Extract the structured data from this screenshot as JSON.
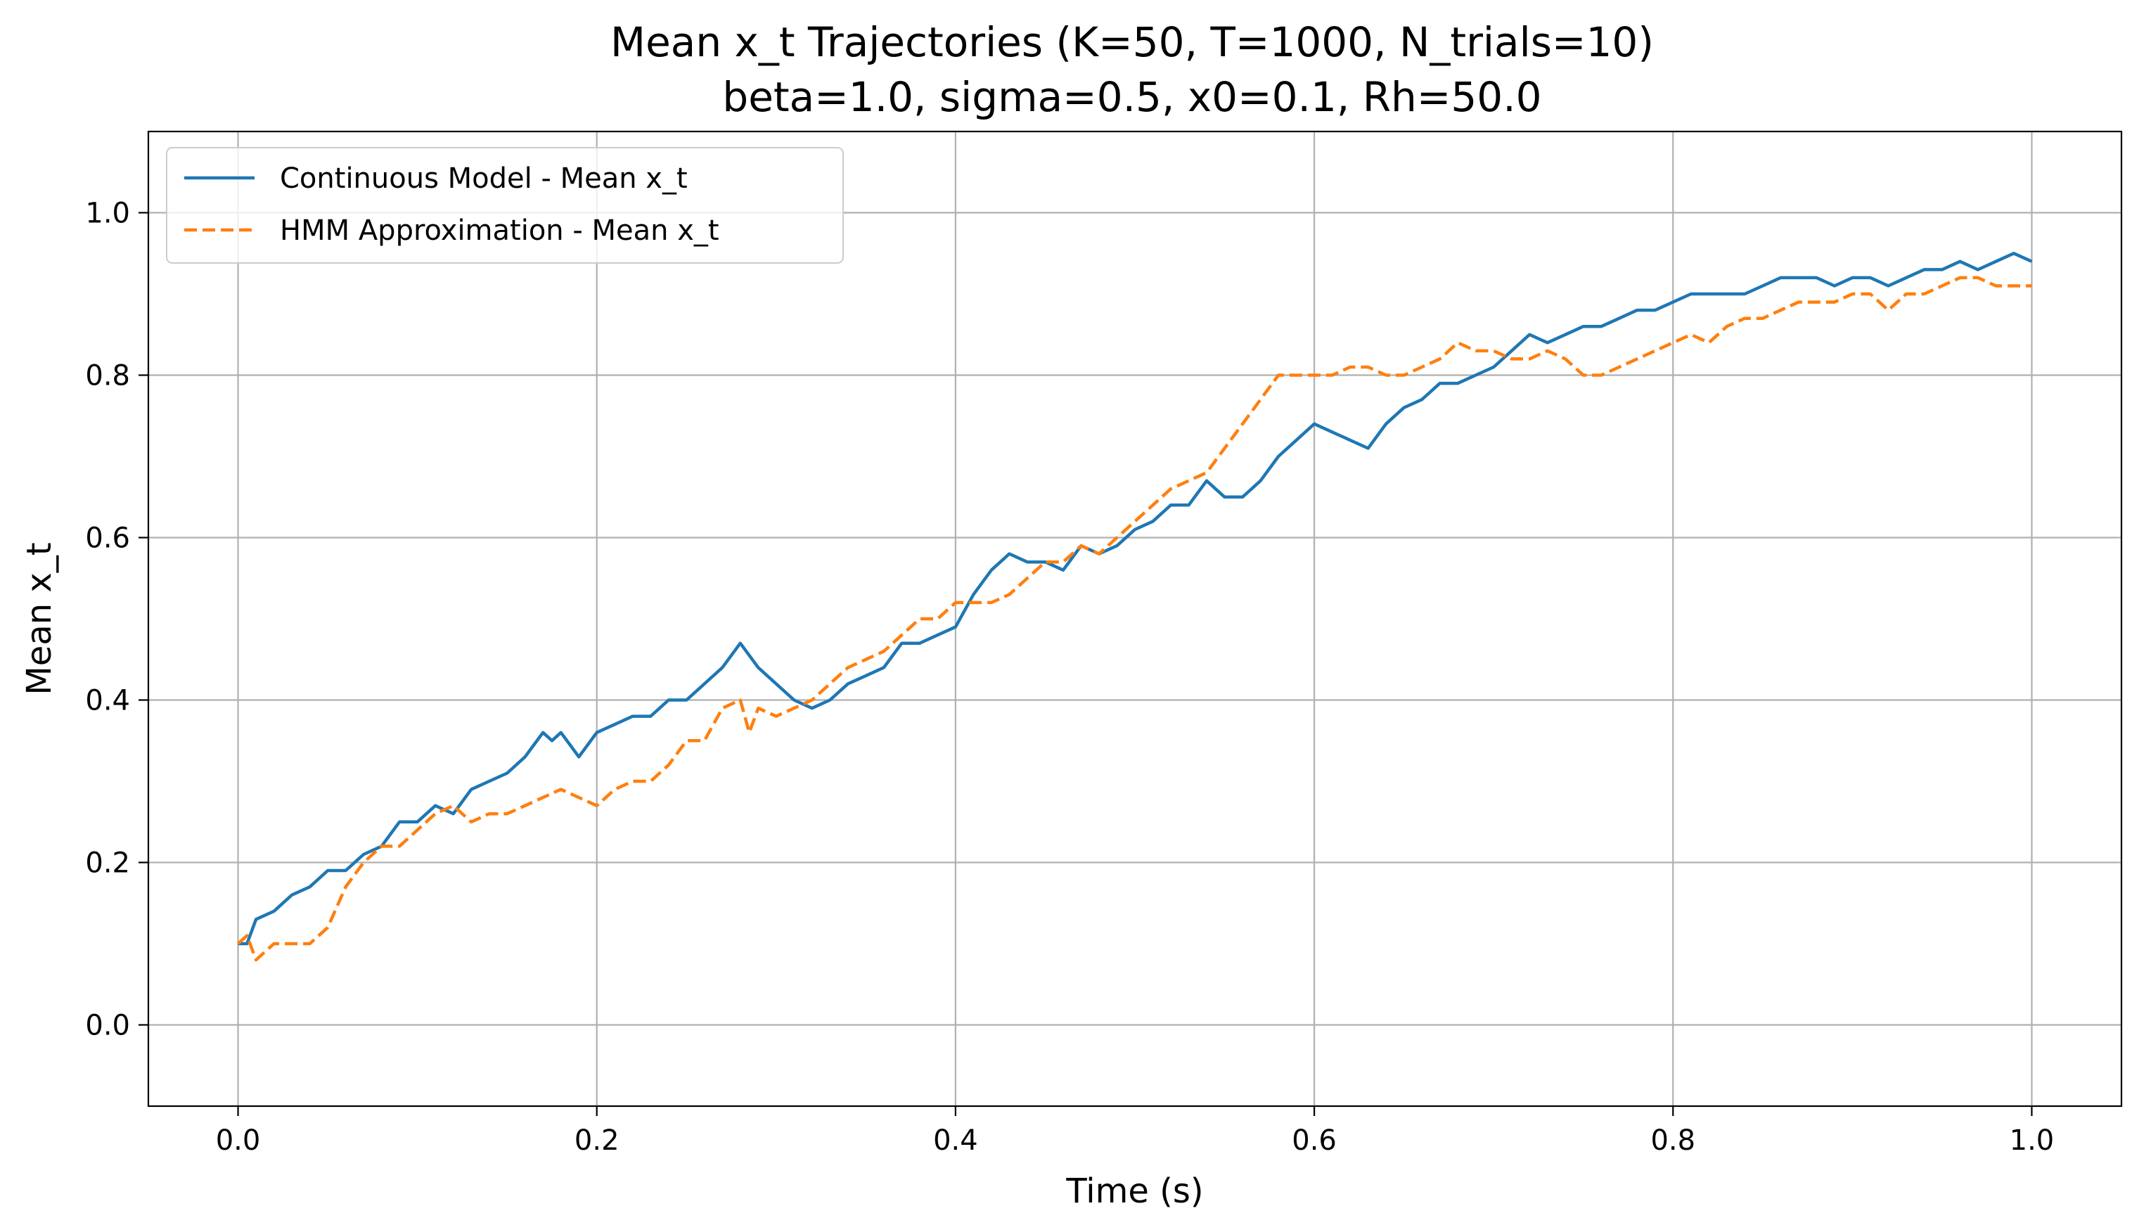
{
  "chart_data": {
    "type": "line",
    "title": "Mean x_t Trajectories (K=50, T=1000, N_trials=10)",
    "subtitle": "beta=1.0, sigma=0.5, x0=0.1, Rh=50.0",
    "xlabel": "Time (s)",
    "ylabel": "Mean x_t",
    "xlim": [
      -0.05,
      1.05
    ],
    "ylim": [
      -0.1,
      1.1
    ],
    "xticks": [
      0.0,
      0.2,
      0.4,
      0.6,
      0.8,
      1.0
    ],
    "xtick_labels": [
      "0.0",
      "0.2",
      "0.4",
      "0.6",
      "0.8",
      "1.0"
    ],
    "yticks": [
      0.0,
      0.2,
      0.4,
      0.6,
      0.8,
      1.0
    ],
    "ytick_labels": [
      "0.0",
      "0.2",
      "0.4",
      "0.6",
      "0.8",
      "1.0"
    ],
    "grid": true,
    "legend_position": "top-left",
    "series": [
      {
        "name": "Continuous Model - Mean x_t",
        "color": "#1f77b4",
        "dash": "solid",
        "x": [
          0.0,
          0.005,
          0.01,
          0.02,
          0.03,
          0.04,
          0.05,
          0.06,
          0.07,
          0.08,
          0.09,
          0.1,
          0.11,
          0.12,
          0.13,
          0.14,
          0.15,
          0.16,
          0.17,
          0.175,
          0.18,
          0.19,
          0.2,
          0.21,
          0.22,
          0.23,
          0.24,
          0.25,
          0.26,
          0.27,
          0.28,
          0.29,
          0.3,
          0.31,
          0.32,
          0.33,
          0.34,
          0.35,
          0.36,
          0.37,
          0.38,
          0.39,
          0.4,
          0.41,
          0.42,
          0.43,
          0.44,
          0.45,
          0.46,
          0.47,
          0.48,
          0.49,
          0.5,
          0.51,
          0.52,
          0.53,
          0.54,
          0.55,
          0.56,
          0.57,
          0.58,
          0.59,
          0.6,
          0.61,
          0.62,
          0.63,
          0.64,
          0.65,
          0.66,
          0.67,
          0.68,
          0.69,
          0.7,
          0.71,
          0.72,
          0.73,
          0.74,
          0.75,
          0.76,
          0.77,
          0.78,
          0.79,
          0.8,
          0.81,
          0.82,
          0.83,
          0.84,
          0.85,
          0.86,
          0.87,
          0.88,
          0.89,
          0.9,
          0.91,
          0.92,
          0.93,
          0.94,
          0.95,
          0.96,
          0.97,
          0.98,
          0.99,
          1.0
        ],
        "y": [
          0.1,
          0.1,
          0.13,
          0.14,
          0.16,
          0.17,
          0.19,
          0.19,
          0.21,
          0.22,
          0.25,
          0.25,
          0.27,
          0.26,
          0.29,
          0.3,
          0.31,
          0.33,
          0.36,
          0.35,
          0.36,
          0.33,
          0.36,
          0.37,
          0.38,
          0.38,
          0.4,
          0.4,
          0.42,
          0.44,
          0.47,
          0.44,
          0.42,
          0.4,
          0.39,
          0.4,
          0.42,
          0.43,
          0.44,
          0.47,
          0.47,
          0.48,
          0.49,
          0.53,
          0.56,
          0.58,
          0.57,
          0.57,
          0.56,
          0.59,
          0.58,
          0.59,
          0.61,
          0.62,
          0.64,
          0.64,
          0.67,
          0.65,
          0.65,
          0.67,
          0.7,
          0.72,
          0.74,
          0.73,
          0.72,
          0.71,
          0.74,
          0.76,
          0.77,
          0.79,
          0.79,
          0.8,
          0.81,
          0.83,
          0.85,
          0.84,
          0.85,
          0.86,
          0.86,
          0.87,
          0.88,
          0.88,
          0.89,
          0.9,
          0.9,
          0.9,
          0.9,
          0.91,
          0.92,
          0.92,
          0.92,
          0.91,
          0.92,
          0.92,
          0.91,
          0.92,
          0.93,
          0.93,
          0.94,
          0.93,
          0.94,
          0.95,
          0.94
        ]
      },
      {
        "name": "HMM Approximation - Mean x_t",
        "color": "#ff7f0e",
        "dash": "dashed",
        "x": [
          0.0,
          0.005,
          0.01,
          0.015,
          0.02,
          0.03,
          0.04,
          0.05,
          0.06,
          0.07,
          0.08,
          0.09,
          0.1,
          0.11,
          0.12,
          0.13,
          0.14,
          0.15,
          0.16,
          0.17,
          0.18,
          0.19,
          0.2,
          0.21,
          0.22,
          0.23,
          0.24,
          0.25,
          0.26,
          0.27,
          0.28,
          0.285,
          0.29,
          0.3,
          0.31,
          0.32,
          0.33,
          0.34,
          0.35,
          0.36,
          0.37,
          0.38,
          0.39,
          0.4,
          0.41,
          0.42,
          0.43,
          0.44,
          0.45,
          0.46,
          0.47,
          0.48,
          0.49,
          0.5,
          0.51,
          0.52,
          0.53,
          0.54,
          0.55,
          0.56,
          0.57,
          0.58,
          0.59,
          0.6,
          0.61,
          0.62,
          0.63,
          0.64,
          0.65,
          0.66,
          0.67,
          0.68,
          0.69,
          0.7,
          0.71,
          0.72,
          0.73,
          0.74,
          0.75,
          0.76,
          0.77,
          0.78,
          0.79,
          0.8,
          0.81,
          0.82,
          0.83,
          0.84,
          0.85,
          0.86,
          0.87,
          0.88,
          0.89,
          0.9,
          0.91,
          0.92,
          0.93,
          0.94,
          0.95,
          0.96,
          0.97,
          0.98,
          0.99,
          1.0
        ],
        "y": [
          0.1,
          0.11,
          0.08,
          0.09,
          0.1,
          0.1,
          0.1,
          0.12,
          0.17,
          0.2,
          0.22,
          0.22,
          0.24,
          0.26,
          0.27,
          0.25,
          0.26,
          0.26,
          0.27,
          0.28,
          0.29,
          0.28,
          0.27,
          0.29,
          0.3,
          0.3,
          0.32,
          0.35,
          0.35,
          0.39,
          0.4,
          0.36,
          0.39,
          0.38,
          0.39,
          0.4,
          0.42,
          0.44,
          0.45,
          0.46,
          0.48,
          0.5,
          0.5,
          0.52,
          0.52,
          0.52,
          0.53,
          0.55,
          0.57,
          0.57,
          0.59,
          0.58,
          0.6,
          0.62,
          0.64,
          0.66,
          0.67,
          0.68,
          0.71,
          0.74,
          0.77,
          0.8,
          0.8,
          0.8,
          0.8,
          0.81,
          0.81,
          0.8,
          0.8,
          0.81,
          0.82,
          0.84,
          0.83,
          0.83,
          0.82,
          0.82,
          0.83,
          0.82,
          0.8,
          0.8,
          0.81,
          0.82,
          0.83,
          0.84,
          0.85,
          0.84,
          0.86,
          0.87,
          0.87,
          0.88,
          0.89,
          0.89,
          0.89,
          0.9,
          0.9,
          0.88,
          0.9,
          0.9,
          0.91,
          0.92,
          0.92,
          0.91,
          0.91,
          0.91
        ]
      }
    ]
  }
}
